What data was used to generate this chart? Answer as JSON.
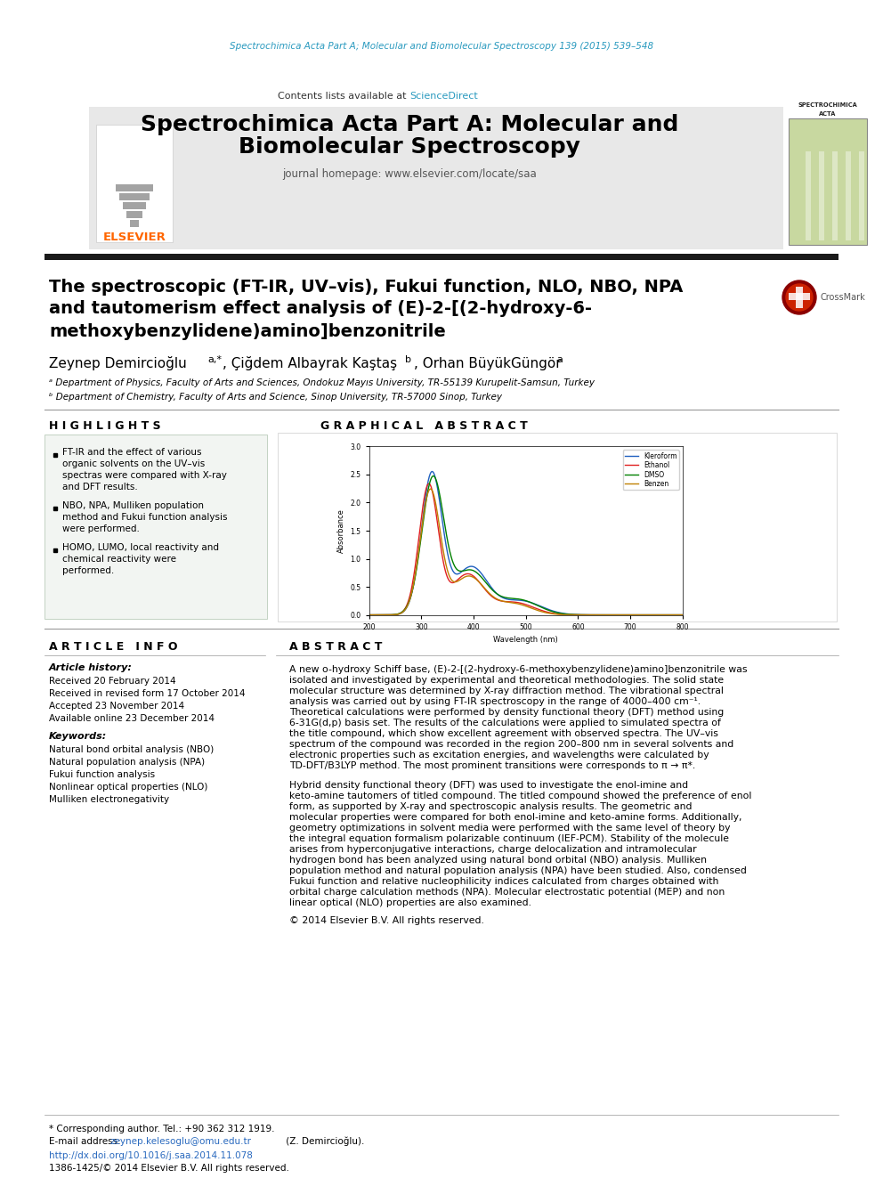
{
  "page_bg": "#ffffff",
  "journal_line": "Spectrochimica Acta Part A; Molecular and Biomolecular Spectroscopy 139 (2015) 539–548",
  "journal_line_color": "#2a9abf",
  "header_bg": "#e8e8e8",
  "header_title_line1": "Spectrochimica Acta Part A: Molecular and",
  "header_title_line2": "Biomolecular Spectroscopy",
  "header_contents_text": "Contents lists available at ",
  "header_sciencedirect": "ScienceDirect",
  "header_sciencedirect_color": "#2a9abf",
  "header_journal_homepage": "journal homepage: www.elsevier.com/locate/saa",
  "elsevier_color": "#ff6600",
  "black_bar_color": "#1a1a1a",
  "article_title_line1": "The spectroscopic (FT-IR, UV–vis), Fukui function, NLO, NBO, NPA",
  "article_title_line2": "and tautomerism effect analysis of (E)-2-[(2-hydroxy-6-",
  "article_title_line3": "methoxybenzylidene)amino]benzonitrile",
  "affil_a": "ᵃ Department of Physics, Faculty of Arts and Sciences, Ondokuz Mayıs University, TR-55139 Kurupelit-Samsun, Turkey",
  "affil_b": "ᵇ Department of Chemistry, Faculty of Arts and Science, Sinop University, TR-57000 Sinop, Turkey",
  "highlights_title": "H I G H L I G H T S",
  "highlights": [
    "FT-IR and the effect of various organic solvents on the UV–vis spectras were compared with X-ray and DFT results.",
    "NBO, NPA, Mulliken population method and Fukui function analysis were performed.",
    "HOMO, LUMO, local reactivity and chemical reactivity were performed."
  ],
  "graphical_abstract_title": "G R A P H I C A L   A B S T R A C T",
  "article_info_title": "A R T I C L E   I N F O",
  "article_history_title": "Article history:",
  "received_date": "Received 20 February 2014",
  "revised_date": "Received in revised form 17 October 2014",
  "accepted_date": "Accepted 23 November 2014",
  "online_date": "Available online 23 December 2014",
  "keywords_title": "Keywords:",
  "keywords": [
    "Natural bond orbital analysis (NBO)",
    "Natural population analysis (NPA)",
    "Fukui function analysis",
    "Nonlinear optical properties (NLO)",
    "Mulliken electronegativity"
  ],
  "abstract_title": "A B S T R A C T",
  "abstract_text1": "A new o-hydroxy Schiff base, (E)-2-[(2-hydroxy-6-methoxybenzylidene)amino]benzonitrile was isolated and investigated by experimental and theoretical methodologies. The solid state molecular structure was determined by X-ray diffraction method. The vibrational spectral analysis was carried out by using FT-IR spectroscopy in the range of 4000–400 cm⁻¹. Theoretical calculations were performed by density functional theory (DFT) method using 6-31G(d,p) basis set. The results of the calculations were applied to simulated spectra of the title compound, which show excellent agreement with observed spectra. The UV–vis spectrum of the compound was recorded in the region 200–800 nm in several solvents and electronic properties such as excitation energies, and wavelengths were calculated by TD-DFT/B3LYP method. The most prominent transitions were corresponds to π → π*.",
  "abstract_text2": "Hybrid density functional theory (DFT) was used to investigate the enol-imine and keto-amine tautomers of titled compound. The titled compound showed the preference of enol form, as supported by X-ray and spectroscopic analysis results. The geometric and molecular properties were compared for both enol-imine and keto-amine forms. Additionally, geometry optimizations in solvent media were performed with the same level of theory by the integral equation formalism polarizable continuum (IEF-PCM). Stability of the molecule arises from hyperconjugative interactions, charge delocalization and intramolecular hydrogen bond has been analyzed using natural bond orbital (NBO) analysis. Mulliken population method and natural population analysis (NPA) have been studied. Also, condensed Fukui function and relative nucleophilicity indices calculated from charges obtained with orbital charge calculation methods (NPA). Molecular electrostatic potential (MEP) and non linear optical (NLO) properties are also examined.",
  "copyright_text": "© 2014 Elsevier B.V. All rights reserved.",
  "footer_note": "* Corresponding author. Tel.: +90 362 312 1919.",
  "footer_email_pre": "E-mail address: ",
  "footer_email": "zeynep.kelesoglu@omu.edu.tr",
  "footer_email_post": " (Z. Demircioğlu).",
  "footer_doi": "http://dx.doi.org/10.1016/j.saa.2014.11.078",
  "footer_issn": "1386-1425/© 2014 Elsevier B.V. All rights reserved.",
  "uv_vis_legend": [
    "Kleroform",
    "Ethanol",
    "DMSO",
    "Benzen"
  ],
  "uv_vis_colors": [
    "#2060c0",
    "#e02020",
    "#008000",
    "#c08000"
  ]
}
